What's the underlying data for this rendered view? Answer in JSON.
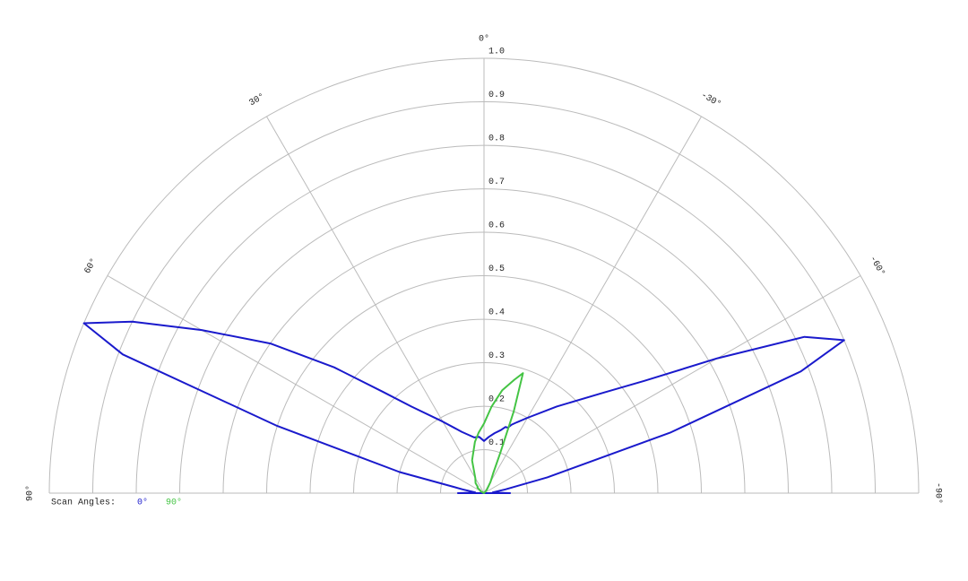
{
  "chart_data": {
    "type": "polar",
    "legend_title": "Scan Angles:",
    "x": [
      90,
      85,
      80,
      76,
      72,
      69,
      67,
      64,
      60,
      55,
      50,
      45,
      40,
      30,
      20,
      10,
      5,
      0,
      -5,
      -10,
      -15,
      -18,
      -20,
      -22,
      -25,
      -30,
      -40,
      -50,
      -55,
      -60,
      -64,
      -67,
      -69,
      -72,
      -76,
      -80,
      -85,
      -90
    ],
    "series": [
      {
        "name": "0°",
        "color": "#1a1acc",
        "values": [
          0.06,
          0.02,
          0.05,
          0.2,
          0.5,
          0.89,
          1.0,
          0.9,
          0.75,
          0.6,
          0.45,
          0.33,
          0.26,
          0.19,
          0.15,
          0.13,
          0.13,
          0.12,
          0.13,
          0.14,
          0.15,
          0.16,
          0.16,
          0.17,
          0.18,
          0.2,
          0.26,
          0.36,
          0.45,
          0.62,
          0.82,
          0.9,
          0.78,
          0.45,
          0.15,
          0.05,
          0.02,
          0.06
        ]
      },
      {
        "name": "90°",
        "color": "#44c444",
        "values": [
          0,
          0,
          0,
          0,
          0,
          0,
          0,
          0,
          0.01,
          0.01,
          0.02,
          0.02,
          0.03,
          0.04,
          0.08,
          0.12,
          0.14,
          0.16,
          0.2,
          0.24,
          0.27,
          0.29,
          0.2,
          0.1,
          0.05,
          0.03,
          0.01,
          0,
          0,
          0,
          0,
          0,
          0,
          0,
          0,
          0,
          0,
          0
        ]
      }
    ],
    "xticks": [
      {
        "value": 90,
        "label": "90°"
      },
      {
        "value": 60,
        "label": "60°"
      },
      {
        "value": 30,
        "label": "30°"
      },
      {
        "value": 0,
        "label": "0°"
      },
      {
        "value": -30,
        "label": "-30°"
      },
      {
        "value": -60,
        "label": "-60°"
      },
      {
        "value": -90,
        "label": "-90°"
      }
    ],
    "ylim": [
      0,
      1
    ],
    "yticks": [
      0.1,
      0.2,
      0.3,
      0.4,
      0.5,
      0.6,
      0.7,
      0.8,
      0.9,
      {
        "value": 1,
        "label": "1.0"
      }
    ],
    "grid": true
  }
}
